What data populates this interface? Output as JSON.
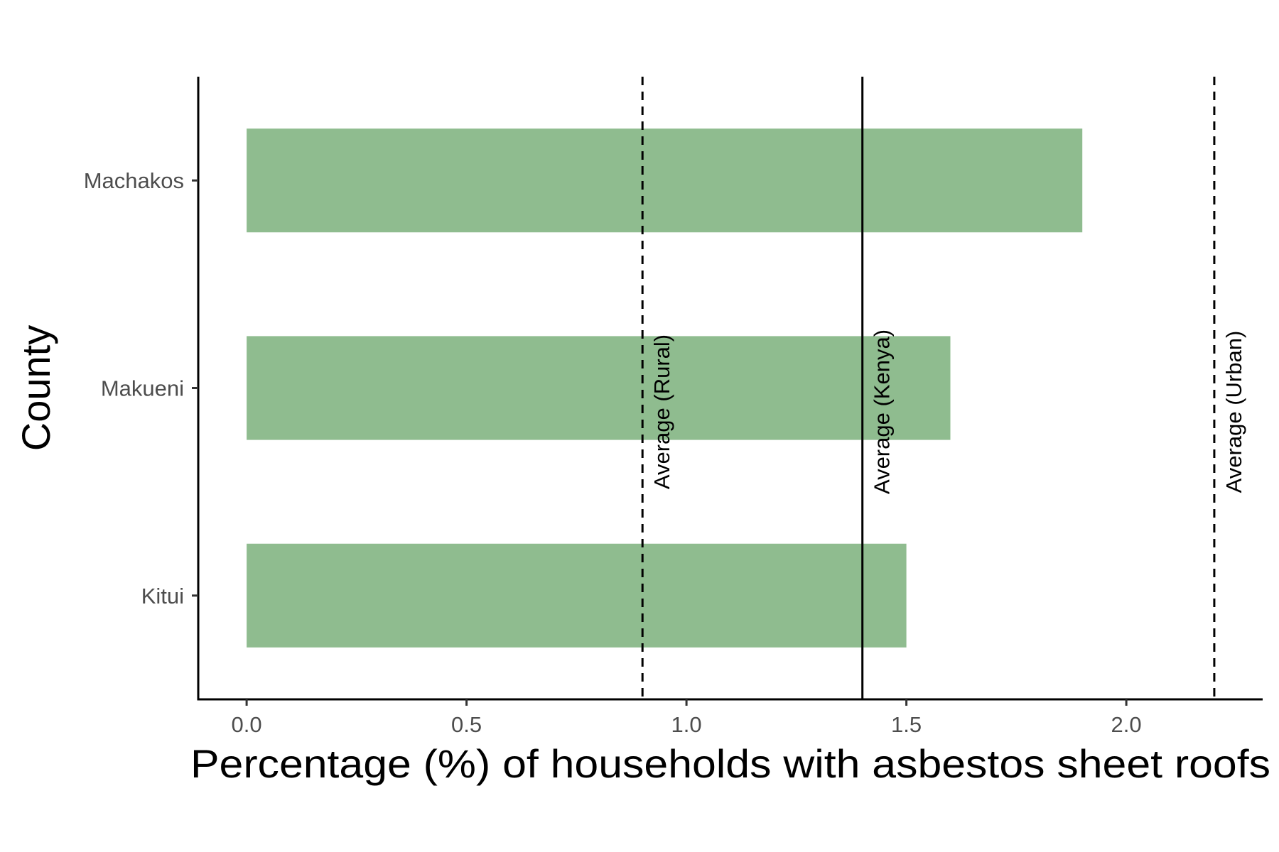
{
  "chart_data": {
    "type": "bar",
    "orientation": "horizontal",
    "categories": [
      "Machakos",
      "Makueni",
      "Kitui"
    ],
    "values": [
      1.9,
      1.6,
      1.5
    ],
    "xlabel": "Percentage (%) of households with asbestos sheet roofs",
    "ylabel": "County",
    "xlim": [
      -0.11,
      2.31
    ],
    "xticks": [
      {
        "value": 0.0,
        "label": "0.0"
      },
      {
        "value": 0.5,
        "label": "0.5"
      },
      {
        "value": 1.0,
        "label": "1.0"
      },
      {
        "value": 1.5,
        "label": "1.5"
      },
      {
        "value": 2.0,
        "label": "2.0"
      }
    ],
    "reference_lines": [
      {
        "label": "Average (Rural)",
        "value": 0.9,
        "style": "dashed"
      },
      {
        "label": "Average (Kenya)",
        "value": 1.4,
        "style": "solid"
      },
      {
        "label": "Average (Urban)",
        "value": 2.2,
        "style": "dashed"
      }
    ],
    "bar_color": "#8fbc8f",
    "grid": false
  }
}
